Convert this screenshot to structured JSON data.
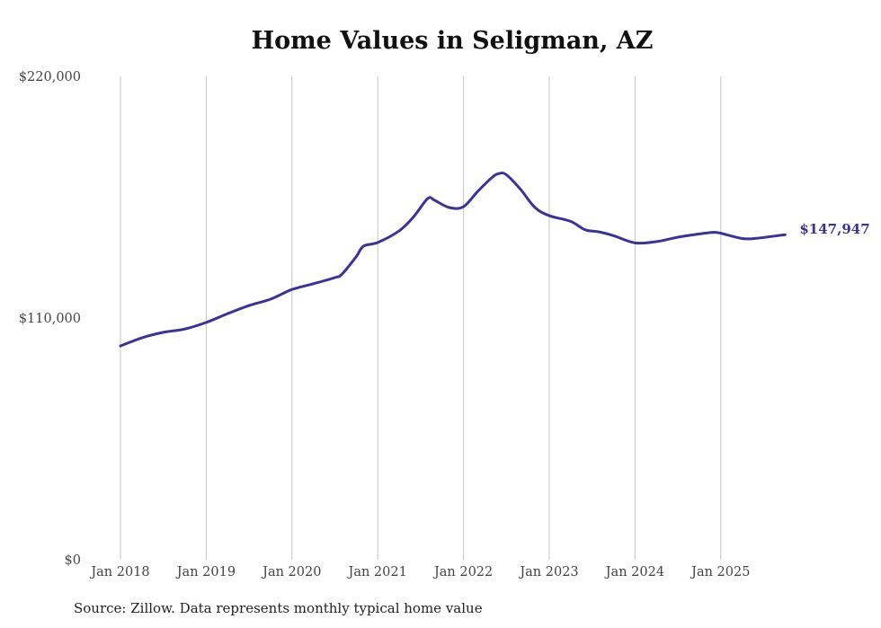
{
  "chart_data": {
    "type": "line",
    "title": "Home Values in Seligman, AZ",
    "source": "Source: Zillow. Data represents monthly typical home value",
    "xlabel": "",
    "ylabel": "",
    "ylim": [
      0,
      220000
    ],
    "y_ticks": [
      0,
      110000,
      220000
    ],
    "y_tick_labels": [
      "$0",
      "$110,000",
      "$220,000"
    ],
    "x_ticks": [
      "2018-01",
      "2019-01",
      "2020-01",
      "2021-01",
      "2022-01",
      "2023-01",
      "2024-01",
      "2025-01"
    ],
    "x_tick_labels": [
      "Jan 2018",
      "Jan 2019",
      "Jan 2020",
      "Jan 2021",
      "Jan 2022",
      "Jan 2023",
      "Jan 2024",
      "Jan 2025"
    ],
    "grid": "vertical",
    "line_color": "#3b3496",
    "end_label": "$147,947",
    "series": [
      {
        "name": "Typical home value",
        "points": [
          [
            "2018-01",
            97300
          ],
          [
            "2018-04",
            101000
          ],
          [
            "2018-07",
            103500
          ],
          [
            "2018-10",
            105000
          ],
          [
            "2019-01",
            108000
          ],
          [
            "2019-04",
            112000
          ],
          [
            "2019-07",
            115700
          ],
          [
            "2019-10",
            118600
          ],
          [
            "2020-01",
            123000
          ],
          [
            "2020-04",
            125600
          ],
          [
            "2020-07",
            128400
          ],
          [
            "2020-08",
            130000
          ],
          [
            "2020-10",
            138000
          ],
          [
            "2020-11",
            142700
          ],
          [
            "2021-01",
            144400
          ],
          [
            "2021-04",
            149700
          ],
          [
            "2021-06",
            156000
          ],
          [
            "2021-08",
            164400
          ],
          [
            "2021-09",
            163500
          ],
          [
            "2021-11",
            160300
          ],
          [
            "2022-01",
            160700
          ],
          [
            "2022-03",
            167700
          ],
          [
            "2022-05",
            174000
          ],
          [
            "2022-06",
            175800
          ],
          [
            "2022-07",
            175200
          ],
          [
            "2022-09",
            168500
          ],
          [
            "2022-11",
            160300
          ],
          [
            "2023-01",
            156600
          ],
          [
            "2023-04",
            154000
          ],
          [
            "2023-06",
            150200
          ],
          [
            "2023-08",
            149200
          ],
          [
            "2023-10",
            147500
          ],
          [
            "2024-01",
            144200
          ],
          [
            "2024-04",
            144800
          ],
          [
            "2024-07",
            146800
          ],
          [
            "2024-10",
            148300
          ],
          [
            "2024-12",
            149000
          ],
          [
            "2025-01",
            148600
          ],
          [
            "2025-04",
            146200
          ],
          [
            "2025-06",
            146300
          ],
          [
            "2025-10",
            147947
          ]
        ]
      }
    ]
  }
}
